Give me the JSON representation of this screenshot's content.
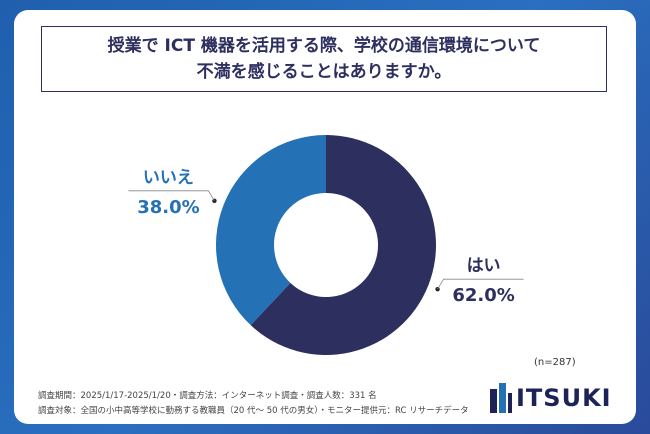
{
  "title": {
    "line1": "授業で ICT 機器を活用する際、学校の通信環境について",
    "line2": "不満を感じることはありますか。"
  },
  "chart_data": {
    "type": "pie",
    "donut": true,
    "categories": [
      "はい",
      "いいえ"
    ],
    "values": [
      62.0,
      38.0
    ],
    "value_labels": [
      "62.0%",
      "38.0%"
    ],
    "colors": [
      "#2d2f5e",
      "#2471b5"
    ]
  },
  "sample_size": "(n=287)",
  "footnotes": {
    "line1": "調査期間：2025/1/17-2025/1/20・調査方法：インターネット調査・調査人数：331 名",
    "line2": "調査対象：全国の小中高等学校に勤務する教職員（20 代〜 50 代の男女）・モニター提供元：RC リサーチデータ"
  },
  "logo": {
    "text": "ITSUKI"
  }
}
